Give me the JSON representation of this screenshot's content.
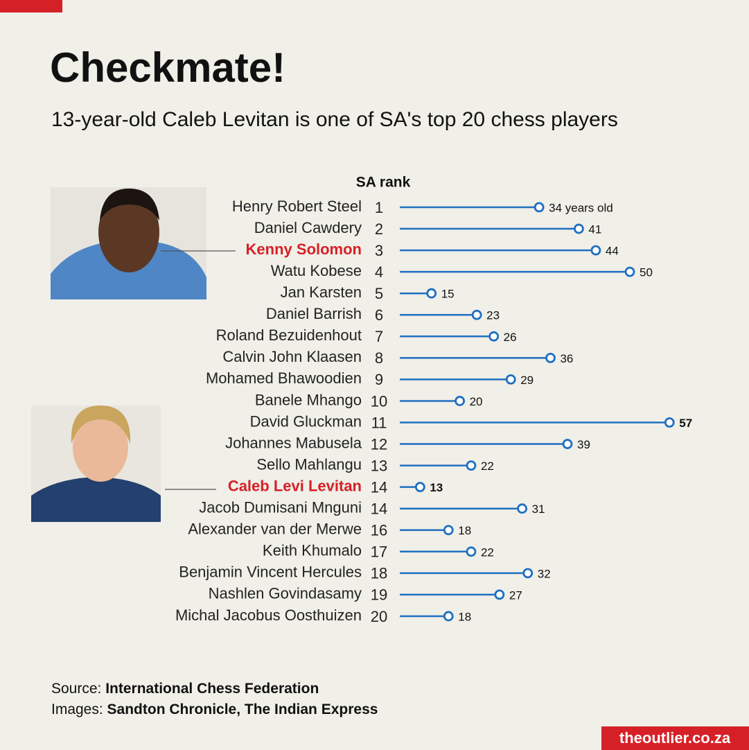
{
  "chart_data": {
    "type": "lollipop",
    "title": "Checkmate!",
    "subtitle": "13-year-old Caleb Levitan is one of SA's top 20 chess players",
    "rank_header": "SA rank",
    "categories": [
      "Henry Robert Steel",
      "Daniel Cawdery",
      "Kenny Solomon",
      "Watu Kobese",
      "Jan Karsten",
      "Daniel Barrish",
      "Roland Bezuidenhout",
      "Calvin John Klaasen",
      "Mohamed Bhawoodien",
      "Banele Mhango",
      "David Gluckman",
      "Johannes Mabusela",
      "Sello Mahlangu",
      "Caleb Levi Levitan",
      "Jacob Dumisani Mnguni",
      "Alexander van der Merwe",
      "Keith Khumalo",
      "Benjamin Vincent Hercules",
      "Nashlen Govindasamy",
      "Michal Jacobus Oosthuizen"
    ],
    "ranks": [
      1,
      2,
      3,
      4,
      5,
      6,
      7,
      8,
      9,
      10,
      11,
      12,
      13,
      14,
      14,
      16,
      17,
      18,
      19,
      20
    ],
    "values": [
      34,
      41,
      44,
      50,
      15,
      23,
      26,
      36,
      29,
      20,
      57,
      39,
      22,
      13,
      31,
      18,
      22,
      32,
      27,
      18
    ],
    "value_labels": [
      "34 years old",
      "41",
      "44",
      "50",
      "15",
      "23",
      "26",
      "36",
      "29",
      "20",
      "57",
      "39",
      "22",
      "13",
      "31",
      "18",
      "22",
      "32",
      "27",
      "18"
    ],
    "color": "#1f6fc0",
    "highlighted": [
      2,
      13
    ],
    "highlight_color": "#d62027",
    "bold_labels": [
      10,
      13
    ],
    "source_label": "Source:",
    "source": "International Chess Federation",
    "images_label": "Images:",
    "images": "Sandton Chronicle, The Indian Express",
    "brand": "theoutlier.co.za"
  }
}
